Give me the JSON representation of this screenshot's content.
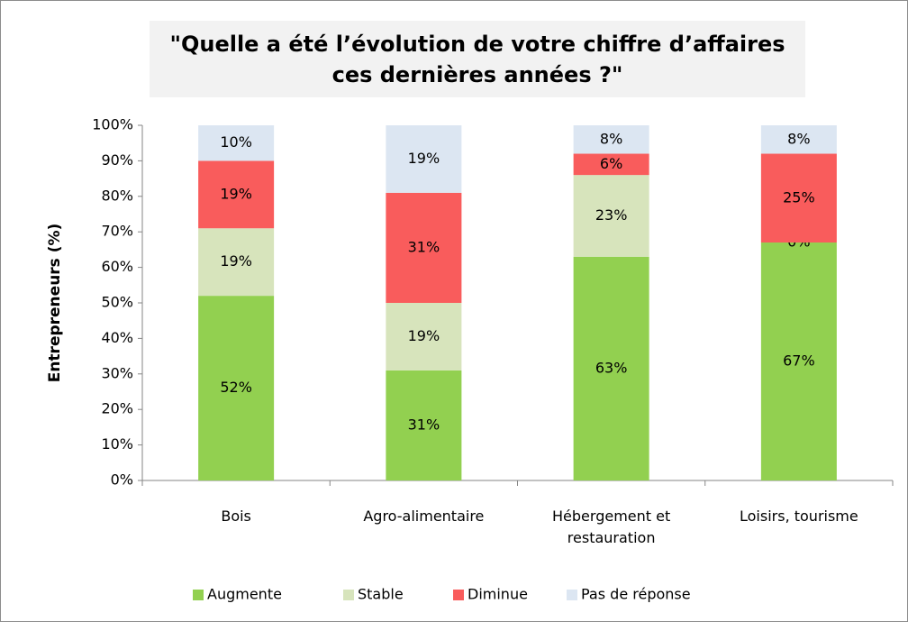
{
  "chart_data": {
    "type": "stacked_bar",
    "title": "\"Quelle a été l’évolution de votre chiffre d’affaires ces dernières années ?\"",
    "y_label": "Entrepreneurs (%)",
    "categories": [
      "Bois",
      "Agro-alimentaire",
      "Hébergement et restauration",
      "Loisirs, tourisme"
    ],
    "series": [
      {
        "name": "Augmente",
        "color": "#92d050",
        "values": [
          52,
          31,
          63,
          67
        ],
        "value_labels": [
          "52%",
          "31%",
          "63%",
          "67%"
        ]
      },
      {
        "name": "Stable",
        "color": "#d7e4bc",
        "values": [
          19,
          19,
          23,
          0
        ],
        "value_labels": [
          "19%",
          "19%",
          "23%",
          "0%"
        ]
      },
      {
        "name": "Diminue",
        "color": "#f95c5c",
        "values": [
          19,
          31,
          6,
          25
        ],
        "value_labels": [
          "19%",
          "31%",
          "6%",
          "25%"
        ]
      },
      {
        "name": "Pas de réponse",
        "color": "#dce6f2",
        "values": [
          10,
          19,
          8,
          8
        ],
        "value_labels": [
          "10%",
          "19%",
          "8%",
          "8%"
        ]
      }
    ],
    "ylim": [
      0,
      100
    ],
    "yticks": [
      {
        "value": 0,
        "label": "0%"
      },
      {
        "value": 10,
        "label": "10%"
      },
      {
        "value": 20,
        "label": "20%"
      },
      {
        "value": 30,
        "label": "30%"
      },
      {
        "value": 40,
        "label": "40%"
      },
      {
        "value": 50,
        "label": "50%"
      },
      {
        "value": 60,
        "label": "60%"
      },
      {
        "value": 70,
        "label": "70%"
      },
      {
        "value": 80,
        "label": "80%"
      },
      {
        "value": 90,
        "label": "90%"
      },
      {
        "value": 100,
        "label": "100%"
      }
    ],
    "legend": "bottom"
  }
}
